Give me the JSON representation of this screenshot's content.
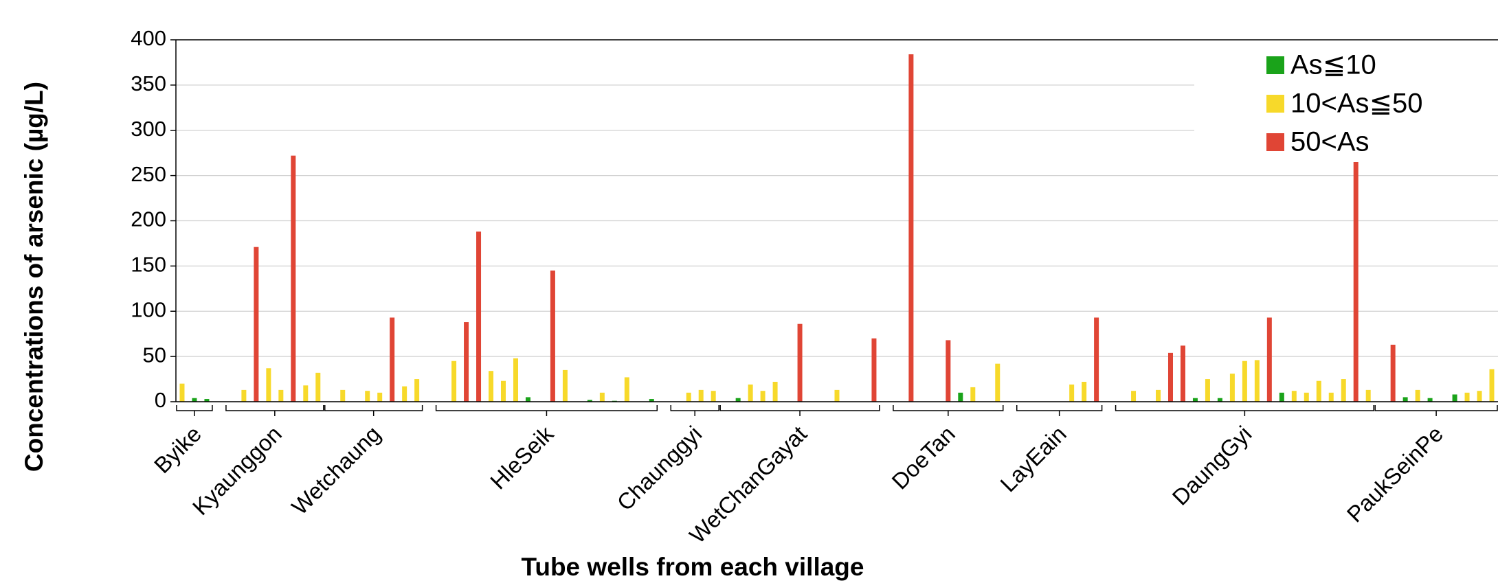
{
  "chart_data": {
    "type": "bar",
    "y_label": "Concentrations of arsenic (µg/L)",
    "x_label": "Tube wells from each village",
    "ylim": [
      0,
      400
    ],
    "yticks": [
      0,
      50,
      100,
      150,
      200,
      250,
      300,
      350,
      400
    ],
    "grid": true,
    "legend": "upper right",
    "categories": [
      null,
      null,
      null,
      null,
      null,
      null,
      null,
      null,
      null,
      null,
      null,
      null,
      null,
      null,
      null,
      null,
      null,
      null,
      null,
      null,
      null,
      null,
      null,
      null,
      null,
      null,
      null,
      null,
      null,
      null,
      null,
      null,
      null,
      null,
      null,
      null,
      null,
      null,
      null,
      null,
      null,
      null,
      null,
      null,
      null,
      null,
      null,
      null,
      null,
      null,
      null,
      null,
      null,
      null,
      null,
      null,
      null,
      null,
      null,
      null,
      null,
      null,
      null,
      null,
      null,
      null,
      null,
      null,
      null,
      null,
      null,
      null,
      null,
      null,
      null,
      null,
      null,
      null,
      null,
      null,
      null,
      null,
      null,
      null,
      null,
      null,
      null,
      null,
      null,
      null,
      null,
      null,
      null,
      null,
      null,
      null,
      null,
      null,
      null,
      null,
      null,
      null,
      null,
      null,
      null,
      null,
      null
    ],
    "series": [
      {
        "name": "As≦10",
        "color": "#1aa31a",
        "values": [
          null,
          4,
          3,
          null,
          null,
          null,
          null,
          null,
          null,
          null,
          null,
          null,
          null,
          null,
          null,
          null,
          null,
          null,
          null,
          null,
          null,
          null,
          null,
          null,
          null,
          null,
          null,
          null,
          5,
          null,
          null,
          null,
          null,
          2,
          null,
          1,
          null,
          null,
          3,
          null,
          null,
          null,
          null,
          null,
          null,
          4,
          null,
          null,
          null,
          null,
          null,
          null,
          null,
          null,
          null,
          null,
          null,
          null,
          null,
          null,
          null,
          null,
          null,
          10,
          null,
          null,
          null,
          null,
          null,
          null,
          null,
          null,
          null,
          null,
          null,
          null,
          null,
          null,
          null,
          null,
          null,
          null,
          4,
          null,
          4,
          null,
          null,
          null,
          null,
          10,
          null,
          null,
          null,
          null,
          null,
          null,
          null,
          null,
          null,
          5,
          null,
          4,
          null,
          8,
          null,
          null,
          null
        ]
      },
      {
        "name": "10<As≦50",
        "color": "#f7d92a",
        "values": [
          20,
          null,
          null,
          null,
          null,
          13,
          null,
          37,
          13,
          null,
          18,
          32,
          null,
          13,
          null,
          12,
          10,
          null,
          17,
          25,
          null,
          null,
          45,
          null,
          null,
          34,
          23,
          48,
          null,
          null,
          null,
          35,
          null,
          null,
          10,
          null,
          27,
          null,
          null,
          null,
          null,
          10,
          13,
          12,
          null,
          null,
          19,
          12,
          22,
          null,
          null,
          null,
          null,
          13,
          null,
          null,
          null,
          null,
          null,
          null,
          null,
          null,
          null,
          null,
          16,
          null,
          42,
          null,
          null,
          null,
          null,
          null,
          19,
          22,
          null,
          null,
          null,
          12,
          null,
          13,
          null,
          null,
          null,
          25,
          null,
          31,
          45,
          46,
          null,
          null,
          12,
          10,
          23,
          10,
          25,
          null,
          13,
          null,
          null,
          null,
          13,
          null,
          null,
          null,
          10,
          12,
          36
        ]
      },
      {
        "name": "50<As",
        "color": "#e04535",
        "values": [
          null,
          null,
          null,
          null,
          null,
          null,
          171,
          null,
          null,
          272,
          null,
          null,
          null,
          null,
          null,
          null,
          null,
          93,
          null,
          null,
          null,
          null,
          null,
          88,
          188,
          null,
          null,
          null,
          null,
          null,
          145,
          null,
          null,
          null,
          null,
          null,
          null,
          null,
          null,
          null,
          null,
          null,
          null,
          null,
          null,
          null,
          null,
          null,
          null,
          null,
          86,
          null,
          null,
          null,
          null,
          null,
          70,
          null,
          null,
          384,
          null,
          null,
          68,
          null,
          null,
          null,
          null,
          null,
          null,
          null,
          null,
          null,
          null,
          null,
          93,
          null,
          null,
          null,
          null,
          null,
          54,
          62,
          null,
          null,
          null,
          null,
          null,
          null,
          93,
          null,
          null,
          null,
          null,
          null,
          null,
          266,
          null,
          null,
          63,
          null,
          null,
          null,
          null,
          null,
          null,
          null,
          null
        ]
      }
    ],
    "groups": [
      {
        "label": "Byike",
        "first": 0,
        "last": 2
      },
      {
        "label": "Kyaunggon",
        "first": 4,
        "last": 11
      },
      {
        "label": "Wetchaung",
        "first": 12,
        "last": 19
      },
      {
        "label": "HleSeik",
        "first": 21,
        "last": 38
      },
      {
        "label": "Chaunggyi",
        "first": 40,
        "last": 43
      },
      {
        "label": "WetChanGayat",
        "first": 44,
        "last": 56
      },
      {
        "label": "DoeTan",
        "first": 58,
        "last": 66
      },
      {
        "label": "LayEain",
        "first": 68,
        "last": 74
      },
      {
        "label": "DaungGyi",
        "first": 76,
        "last": 96
      },
      {
        "label": "PaukSeinPe",
        "first": 97,
        "last": 106
      }
    ]
  }
}
